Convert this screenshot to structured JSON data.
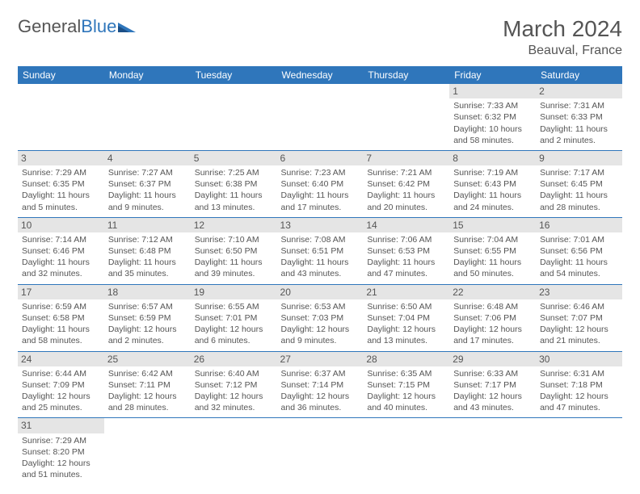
{
  "brand": {
    "part1": "General",
    "part2": "Blue"
  },
  "title": "March 2024",
  "location": "Beauval, France",
  "colors": {
    "header_bg": "#2f76bb",
    "header_text": "#ffffff",
    "daynum_bg": "#e5e5e5",
    "divider": "#2f76bb",
    "text": "#555555",
    "background": "#ffffff"
  },
  "day_headers": [
    "Sunday",
    "Monday",
    "Tuesday",
    "Wednesday",
    "Thursday",
    "Friday",
    "Saturday"
  ],
  "weeks": [
    [
      null,
      null,
      null,
      null,
      null,
      {
        "n": "1",
        "sr": "Sunrise: 7:33 AM",
        "ss": "Sunset: 6:32 PM",
        "dl": "Daylight: 10 hours and 58 minutes."
      },
      {
        "n": "2",
        "sr": "Sunrise: 7:31 AM",
        "ss": "Sunset: 6:33 PM",
        "dl": "Daylight: 11 hours and 2 minutes."
      }
    ],
    [
      {
        "n": "3",
        "sr": "Sunrise: 7:29 AM",
        "ss": "Sunset: 6:35 PM",
        "dl": "Daylight: 11 hours and 5 minutes."
      },
      {
        "n": "4",
        "sr": "Sunrise: 7:27 AM",
        "ss": "Sunset: 6:37 PM",
        "dl": "Daylight: 11 hours and 9 minutes."
      },
      {
        "n": "5",
        "sr": "Sunrise: 7:25 AM",
        "ss": "Sunset: 6:38 PM",
        "dl": "Daylight: 11 hours and 13 minutes."
      },
      {
        "n": "6",
        "sr": "Sunrise: 7:23 AM",
        "ss": "Sunset: 6:40 PM",
        "dl": "Daylight: 11 hours and 17 minutes."
      },
      {
        "n": "7",
        "sr": "Sunrise: 7:21 AM",
        "ss": "Sunset: 6:42 PM",
        "dl": "Daylight: 11 hours and 20 minutes."
      },
      {
        "n": "8",
        "sr": "Sunrise: 7:19 AM",
        "ss": "Sunset: 6:43 PM",
        "dl": "Daylight: 11 hours and 24 minutes."
      },
      {
        "n": "9",
        "sr": "Sunrise: 7:17 AM",
        "ss": "Sunset: 6:45 PM",
        "dl": "Daylight: 11 hours and 28 minutes."
      }
    ],
    [
      {
        "n": "10",
        "sr": "Sunrise: 7:14 AM",
        "ss": "Sunset: 6:46 PM",
        "dl": "Daylight: 11 hours and 32 minutes."
      },
      {
        "n": "11",
        "sr": "Sunrise: 7:12 AM",
        "ss": "Sunset: 6:48 PM",
        "dl": "Daylight: 11 hours and 35 minutes."
      },
      {
        "n": "12",
        "sr": "Sunrise: 7:10 AM",
        "ss": "Sunset: 6:50 PM",
        "dl": "Daylight: 11 hours and 39 minutes."
      },
      {
        "n": "13",
        "sr": "Sunrise: 7:08 AM",
        "ss": "Sunset: 6:51 PM",
        "dl": "Daylight: 11 hours and 43 minutes."
      },
      {
        "n": "14",
        "sr": "Sunrise: 7:06 AM",
        "ss": "Sunset: 6:53 PM",
        "dl": "Daylight: 11 hours and 47 minutes."
      },
      {
        "n": "15",
        "sr": "Sunrise: 7:04 AM",
        "ss": "Sunset: 6:55 PM",
        "dl": "Daylight: 11 hours and 50 minutes."
      },
      {
        "n": "16",
        "sr": "Sunrise: 7:01 AM",
        "ss": "Sunset: 6:56 PM",
        "dl": "Daylight: 11 hours and 54 minutes."
      }
    ],
    [
      {
        "n": "17",
        "sr": "Sunrise: 6:59 AM",
        "ss": "Sunset: 6:58 PM",
        "dl": "Daylight: 11 hours and 58 minutes."
      },
      {
        "n": "18",
        "sr": "Sunrise: 6:57 AM",
        "ss": "Sunset: 6:59 PM",
        "dl": "Daylight: 12 hours and 2 minutes."
      },
      {
        "n": "19",
        "sr": "Sunrise: 6:55 AM",
        "ss": "Sunset: 7:01 PM",
        "dl": "Daylight: 12 hours and 6 minutes."
      },
      {
        "n": "20",
        "sr": "Sunrise: 6:53 AM",
        "ss": "Sunset: 7:03 PM",
        "dl": "Daylight: 12 hours and 9 minutes."
      },
      {
        "n": "21",
        "sr": "Sunrise: 6:50 AM",
        "ss": "Sunset: 7:04 PM",
        "dl": "Daylight: 12 hours and 13 minutes."
      },
      {
        "n": "22",
        "sr": "Sunrise: 6:48 AM",
        "ss": "Sunset: 7:06 PM",
        "dl": "Daylight: 12 hours and 17 minutes."
      },
      {
        "n": "23",
        "sr": "Sunrise: 6:46 AM",
        "ss": "Sunset: 7:07 PM",
        "dl": "Daylight: 12 hours and 21 minutes."
      }
    ],
    [
      {
        "n": "24",
        "sr": "Sunrise: 6:44 AM",
        "ss": "Sunset: 7:09 PM",
        "dl": "Daylight: 12 hours and 25 minutes."
      },
      {
        "n": "25",
        "sr": "Sunrise: 6:42 AM",
        "ss": "Sunset: 7:11 PM",
        "dl": "Daylight: 12 hours and 28 minutes."
      },
      {
        "n": "26",
        "sr": "Sunrise: 6:40 AM",
        "ss": "Sunset: 7:12 PM",
        "dl": "Daylight: 12 hours and 32 minutes."
      },
      {
        "n": "27",
        "sr": "Sunrise: 6:37 AM",
        "ss": "Sunset: 7:14 PM",
        "dl": "Daylight: 12 hours and 36 minutes."
      },
      {
        "n": "28",
        "sr": "Sunrise: 6:35 AM",
        "ss": "Sunset: 7:15 PM",
        "dl": "Daylight: 12 hours and 40 minutes."
      },
      {
        "n": "29",
        "sr": "Sunrise: 6:33 AM",
        "ss": "Sunset: 7:17 PM",
        "dl": "Daylight: 12 hours and 43 minutes."
      },
      {
        "n": "30",
        "sr": "Sunrise: 6:31 AM",
        "ss": "Sunset: 7:18 PM",
        "dl": "Daylight: 12 hours and 47 minutes."
      }
    ],
    [
      {
        "n": "31",
        "sr": "Sunrise: 7:29 AM",
        "ss": "Sunset: 8:20 PM",
        "dl": "Daylight: 12 hours and 51 minutes."
      },
      null,
      null,
      null,
      null,
      null,
      null
    ]
  ]
}
